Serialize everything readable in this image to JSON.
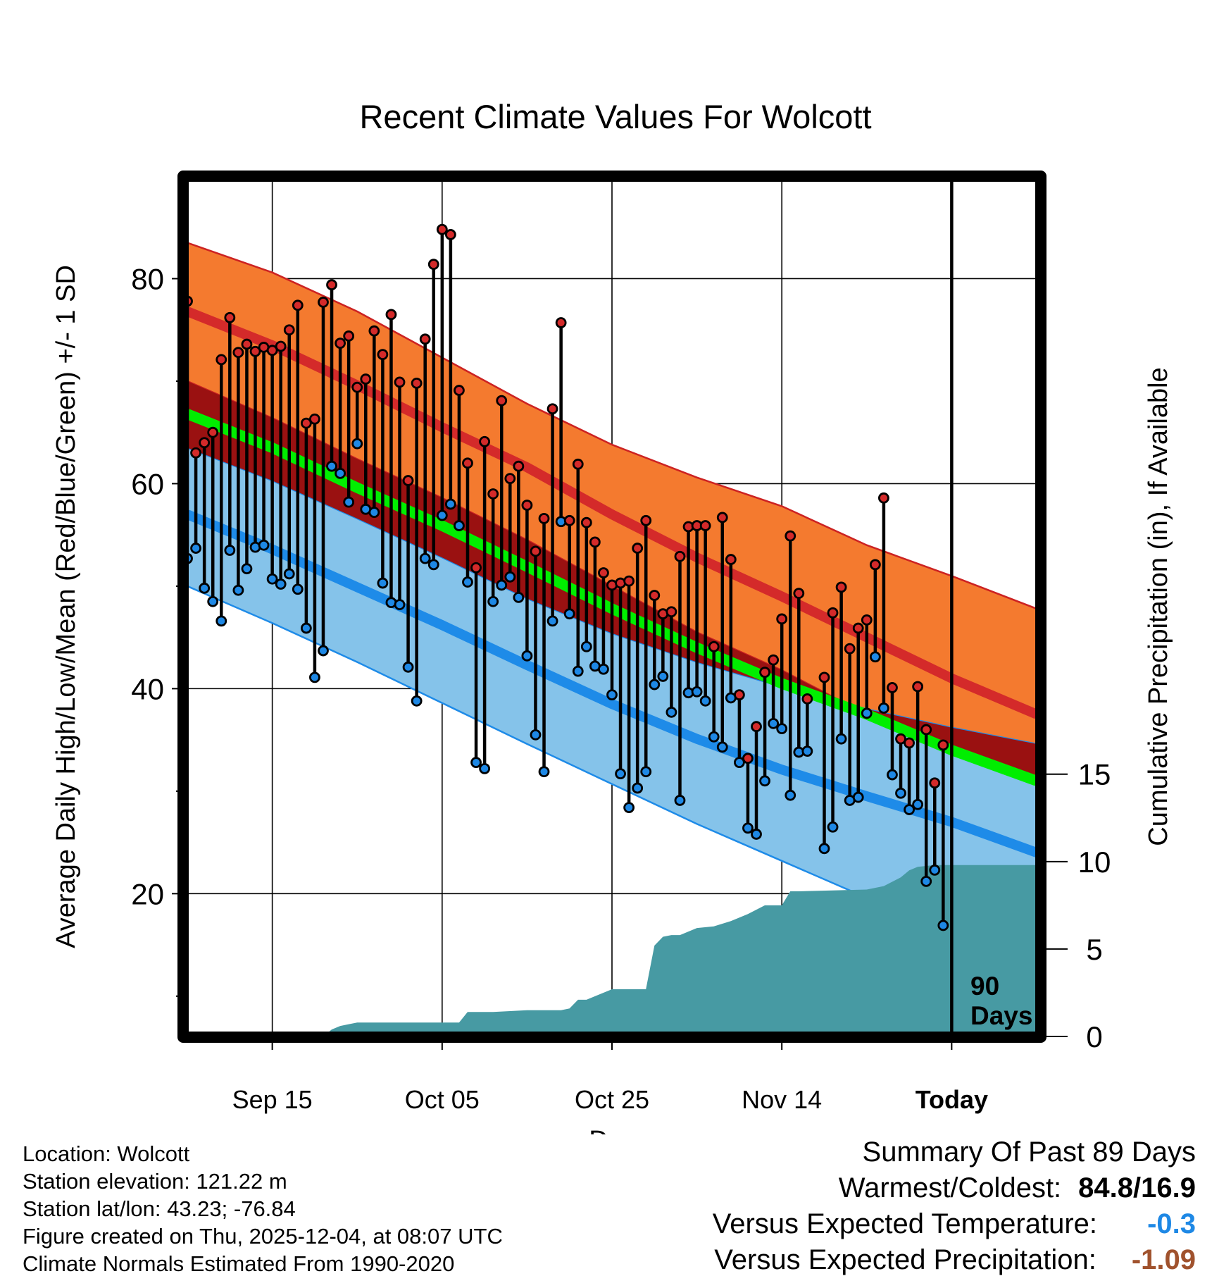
{
  "chart_data": {
    "type": "line",
    "title": "Recent Climate Values For Wolcott",
    "xlabel": "Day",
    "ylabel": "Average Daily High/Low/Mean (Red/Blue/Green) +/- 1 SD",
    "ylabel2": "Cumulative Precipitation (in), If Available",
    "x_tick_labels": [
      "Sep 15",
      "Oct 05",
      "Oct 25",
      "Nov 14",
      "Today"
    ],
    "x_tick_days": [
      10,
      30,
      50,
      70,
      90
    ],
    "xlim": [
      -0.5,
      100.5
    ],
    "ylim": [
      6,
      90
    ],
    "y_ticks": [
      20,
      40,
      60,
      80
    ],
    "y_minor_ticks": [
      10,
      30,
      50,
      70
    ],
    "y2lim": [
      -0.04,
      49.2
    ],
    "y2_ticks": [
      0,
      5,
      10,
      15
    ],
    "grid": true,
    "marker_label": "90 Days",
    "normals": {
      "days": [
        0,
        10,
        20,
        30,
        40,
        50,
        60,
        70,
        80,
        90,
        100
      ],
      "high_mean": [
        76.8,
        73.5,
        69.6,
        65.5,
        61.6,
        57.0,
        52.8,
        49.0,
        45.0,
        41.0,
        37.5
      ],
      "high_upper": [
        83.5,
        80.6,
        76.8,
        72.3,
        67.8,
        63.8,
        60.6,
        57.8,
        54.0,
        51.0,
        47.8
      ],
      "high_lower": [
        70.0,
        66.4,
        62.4,
        58.6,
        54.5,
        50.0,
        45.5,
        41.8,
        37.5,
        34.0,
        31.0
      ],
      "low_mean": [
        57.0,
        53.6,
        49.9,
        46.2,
        42.3,
        38.5,
        35.1,
        32.1,
        29.5,
        27.0,
        24.0
      ],
      "low_upper": [
        63.5,
        60.3,
        56.6,
        52.8,
        48.8,
        45.4,
        42.6,
        40.2,
        38.0,
        36.2,
        34.6
      ],
      "low_lower": [
        50.0,
        46.4,
        42.6,
        38.6,
        34.6,
        30.7,
        26.8,
        23.2,
        19.6,
        17.0,
        15.2
      ],
      "mean": [
        66.8,
        63.5,
        59.6,
        55.9,
        51.9,
        47.8,
        44.0,
        40.5,
        37.5,
        34.0,
        31.0
      ]
    },
    "daily_high": [
      77.8,
      63.0,
      64.0,
      65.0,
      72.1,
      76.2,
      72.8,
      73.6,
      72.9,
      73.3,
      73.0,
      73.4,
      75.0,
      77.4,
      65.9,
      66.3,
      77.7,
      79.4,
      73.7,
      74.4,
      69.4,
      70.2,
      74.9,
      72.6,
      76.5,
      69.9,
      60.3,
      69.8,
      74.1,
      81.4,
      84.8,
      84.3,
      69.1,
      62.0,
      51.8,
      64.1,
      59.0,
      68.1,
      60.5,
      61.7,
      57.9,
      53.4,
      56.6,
      67.3,
      75.7,
      56.4,
      61.9,
      56.2,
      54.3,
      51.3,
      50.1,
      50.3,
      50.5,
      53.7,
      56.4,
      49.1,
      47.3,
      47.5,
      52.9,
      55.8,
      55.9,
      55.9,
      44.1,
      56.7,
      52.6,
      39.4,
      33.2,
      36.3,
      41.6,
      42.8,
      46.8,
      54.9,
      49.3,
      39.0,
      null,
      41.1,
      47.4,
      49.9,
      43.9,
      45.9,
      46.7,
      52.1,
      58.6,
      40.1,
      35.1,
      34.7,
      40.2,
      36.0,
      30.8,
      34.5
    ],
    "daily_low": [
      52.7,
      53.7,
      49.8,
      48.5,
      46.6,
      53.5,
      49.6,
      51.7,
      53.8,
      54.0,
      50.7,
      50.2,
      51.2,
      49.7,
      45.9,
      41.1,
      43.7,
      61.7,
      61.0,
      58.2,
      63.9,
      57.5,
      57.2,
      50.3,
      48.4,
      48.2,
      42.1,
      38.8,
      52.7,
      52.1,
      56.9,
      58.0,
      55.9,
      50.4,
      32.8,
      32.2,
      48.5,
      50.1,
      50.9,
      48.9,
      43.2,
      35.5,
      31.9,
      46.6,
      56.3,
      47.3,
      41.7,
      44.1,
      42.2,
      41.9,
      39.4,
      31.7,
      28.4,
      30.3,
      31.9,
      40.4,
      41.2,
      37.7,
      29.1,
      39.6,
      39.7,
      38.8,
      35.3,
      34.3,
      39.1,
      32.8,
      26.4,
      25.8,
      31.0,
      36.6,
      36.1,
      29.6,
      33.8,
      33.9,
      null,
      24.4,
      26.5,
      35.1,
      29.1,
      29.4,
      37.6,
      43.1,
      38.1,
      31.6,
      29.8,
      28.2,
      28.7,
      21.2,
      22.3,
      16.9
    ],
    "cumulative_precip_days": [
      0,
      16,
      17,
      18,
      19,
      20,
      21,
      22,
      25,
      28,
      30,
      32,
      33,
      34,
      35,
      36,
      40,
      42,
      44,
      45,
      46,
      47,
      48,
      50,
      52,
      54,
      55,
      56,
      57,
      58,
      60,
      62,
      64,
      66,
      68,
      70,
      71,
      72,
      80,
      82,
      84,
      85,
      86,
      88,
      90,
      95,
      100
    ],
    "cumulative_precip": [
      0,
      0,
      0.4,
      0.6,
      0.7,
      0.8,
      0.8,
      0.8,
      0.8,
      0.8,
      0.8,
      0.8,
      1.4,
      1.4,
      1.4,
      1.4,
      1.5,
      1.5,
      1.5,
      1.6,
      2.1,
      2.1,
      2.3,
      2.7,
      2.7,
      2.7,
      5.2,
      5.7,
      5.8,
      5.8,
      6.2,
      6.3,
      6.6,
      7.0,
      7.5,
      7.5,
      8.3,
      8.3,
      8.4,
      8.6,
      9.1,
      9.5,
      9.7,
      9.8,
      9.8,
      9.8,
      9.8
    ]
  },
  "footer": {
    "location": "Location: Wolcott",
    "elevation": "Station elevation: 121.22 m",
    "latlon": "Station lat/lon: 43.23; -76.84",
    "created": "Figure created on Thu, 2025-12-04, at 08:07 UTC",
    "normals": "Climate Normals Estimated From 1990-2020"
  },
  "summary": {
    "title": "Summary Of Past 89 Days",
    "warm_cold_label": "Warmest/Coldest:",
    "warm_cold_value": "84.8/16.9",
    "temp_label": "Versus Expected Temperature:",
    "temp_value": "-0.3",
    "precip_label": "Versus Expected Precipitation:",
    "precip_value": "-1.09"
  },
  "colors": {
    "high_band": "#f47a2f",
    "high_line": "#d42a2a",
    "high_edge": "#cc2222",
    "low_band": "#85c3ea",
    "low_line": "#1e8be8",
    "mean_line": "#00ee00",
    "overlap": "#9a1111",
    "precip": "#479aa3",
    "high_dot": "#d42a2a",
    "low_dot": "#1e88e5",
    "temp_value": "#1e88e5",
    "precip_value": "#a0522d"
  }
}
